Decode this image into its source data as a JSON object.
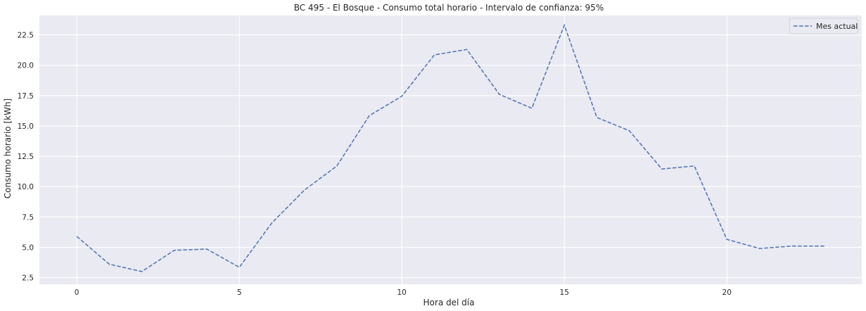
{
  "chart_data": {
    "type": "line",
    "title": "BC 495 - El Bosque - Consumo total horario - Intervalo de confianza: 95%",
    "xlabel": "Hora del día",
    "ylabel": "Consumo horario [kWh]",
    "xlim": [
      -1.15,
      24.15
    ],
    "ylim": [
      1.95,
      24.1
    ],
    "xticks": [
      0,
      5,
      10,
      15,
      20
    ],
    "yticks": [
      2.5,
      5.0,
      7.5,
      10.0,
      12.5,
      15.0,
      17.5,
      20.0,
      22.5
    ],
    "ytick_labels": [
      "2.5",
      "5.0",
      "7.5",
      "10.0",
      "12.5",
      "15.0",
      "17.5",
      "20.0",
      "22.5"
    ],
    "grid": true,
    "legend_position": "top-right",
    "series": [
      {
        "name": "Mes actual",
        "color": "#4c72b0",
        "line_style": "dashed",
        "x": [
          0,
          1,
          2,
          3,
          4,
          5,
          6,
          7,
          8,
          9,
          10,
          11,
          12,
          13,
          14,
          15,
          16,
          17,
          18,
          19,
          20,
          21,
          22,
          23
        ],
        "values": [
          5.9,
          3.6,
          3.0,
          4.75,
          4.85,
          3.35,
          7.0,
          9.7,
          11.7,
          15.85,
          17.45,
          20.85,
          21.3,
          17.6,
          16.45,
          23.3,
          15.7,
          14.6,
          11.45,
          11.7,
          5.65,
          4.9,
          5.1,
          5.1
        ]
      }
    ]
  },
  "colors": {
    "plot_background": "#eaeaf2",
    "grid": "#ffffff",
    "series": "#4c72b0"
  }
}
